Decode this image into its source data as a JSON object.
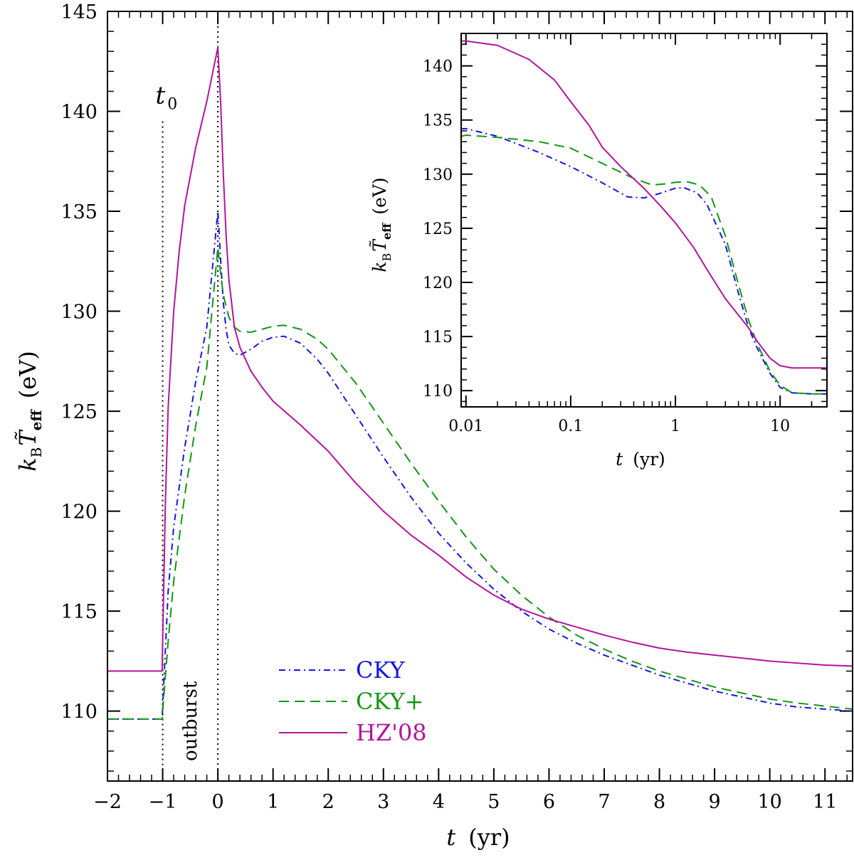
{
  "chart_data": [
    {
      "panel": "main",
      "type": "line",
      "x_unit": "t (yr)",
      "xlabel_var": "t",
      "xlabel_unit": "(yr)",
      "ylabel_k": "k",
      "ylabel_k_sub": "B",
      "ylabel_T": "T̃",
      "ylabel_T_sub": "eff",
      "ylabel_unit": "(eV)",
      "xlim": [
        -2,
        11.5
      ],
      "ylim": [
        106.5,
        145
      ],
      "x_ticks": [
        -2,
        -1,
        0,
        1,
        2,
        3,
        4,
        5,
        6,
        7,
        8,
        9,
        10,
        11
      ],
      "x_tick_labels": [
        "−2",
        "−1",
        "0",
        "1",
        "2",
        "3",
        "4",
        "5",
        "6",
        "7",
        "8",
        "9",
        "10",
        "11"
      ],
      "y_ticks": [
        110,
        115,
        120,
        125,
        130,
        135,
        140,
        145
      ],
      "y_tick_labels": [
        "110",
        "115",
        "120",
        "125",
        "130",
        "135",
        "140",
        "145"
      ],
      "annotations": {
        "t0_label": "t",
        "t0_sub": "0",
        "outburst_label": "outburst",
        "t0_x": -1,
        "outburst_end_x": 0
      },
      "legend": [
        "CKY",
        "CKY+",
        "HZ'08"
      ],
      "series": [
        {
          "name": "CKY",
          "color": "#1414e6",
          "dash": "dashdot",
          "points": [
            [
              -2,
              109.6
            ],
            [
              -1.01,
              109.6
            ],
            [
              -1,
              110.2
            ],
            [
              -0.9,
              116.0
            ],
            [
              -0.8,
              119.2
            ],
            [
              -0.6,
              123.2
            ],
            [
              -0.4,
              126.5
            ],
            [
              -0.2,
              129.2
            ],
            [
              0,
              135.0
            ],
            [
              0.05,
              132.6
            ],
            [
              0.1,
              130.4
            ],
            [
              0.15,
              129.1
            ],
            [
              0.2,
              128.3
            ],
            [
              0.3,
              127.9
            ],
            [
              0.4,
              127.8
            ],
            [
              0.6,
              128.1
            ],
            [
              0.8,
              128.5
            ],
            [
              1.0,
              128.7
            ],
            [
              1.2,
              128.75
            ],
            [
              1.5,
              128.4
            ],
            [
              1.8,
              127.6
            ],
            [
              2.0,
              126.9
            ],
            [
              2.5,
              124.8
            ],
            [
              3.0,
              122.7
            ],
            [
              3.5,
              120.7
            ],
            [
              4.0,
              118.9
            ],
            [
              4.5,
              117.4
            ],
            [
              5.0,
              116.1
            ],
            [
              5.5,
              115.0
            ],
            [
              6.0,
              114.1
            ],
            [
              6.5,
              113.4
            ],
            [
              7.0,
              112.8
            ],
            [
              7.5,
              112.3
            ],
            [
              8.0,
              111.8
            ],
            [
              8.5,
              111.4
            ],
            [
              9.0,
              111.0
            ],
            [
              9.5,
              110.7
            ],
            [
              10.0,
              110.4
            ],
            [
              10.5,
              110.2
            ],
            [
              11.0,
              110.1
            ],
            [
              11.5,
              110.0
            ]
          ]
        },
        {
          "name": "CKY+",
          "color": "#139613",
          "dash": "dashed",
          "points": [
            [
              -2,
              109.6
            ],
            [
              -1.01,
              109.6
            ],
            [
              -1,
              110.0
            ],
            [
              -0.9,
              113.5
            ],
            [
              -0.8,
              116.5
            ],
            [
              -0.6,
              120.8
            ],
            [
              -0.4,
              124.3
            ],
            [
              -0.2,
              127.2
            ],
            [
              0,
              133.2
            ],
            [
              0.05,
              131.9
            ],
            [
              0.1,
              130.8
            ],
            [
              0.2,
              129.7
            ],
            [
              0.3,
              129.2
            ],
            [
              0.4,
              129.0
            ],
            [
              0.6,
              128.95
            ],
            [
              0.8,
              129.1
            ],
            [
              1.0,
              129.25
            ],
            [
              1.2,
              129.3
            ],
            [
              1.5,
              129.1
            ],
            [
              1.8,
              128.6
            ],
            [
              2.0,
              128.1
            ],
            [
              2.5,
              126.4
            ],
            [
              3.0,
              124.4
            ],
            [
              3.5,
              122.4
            ],
            [
              4.0,
              120.5
            ],
            [
              4.5,
              118.7
            ],
            [
              5.0,
              117.1
            ],
            [
              5.5,
              115.8
            ],
            [
              6.0,
              114.7
            ],
            [
              6.5,
              113.8
            ],
            [
              7.0,
              113.1
            ],
            [
              7.5,
              112.5
            ],
            [
              8.0,
              112.0
            ],
            [
              8.5,
              111.6
            ],
            [
              9.0,
              111.2
            ],
            [
              9.5,
              110.9
            ],
            [
              10.0,
              110.6
            ],
            [
              10.5,
              110.4
            ],
            [
              11.0,
              110.25
            ],
            [
              11.5,
              110.1
            ]
          ]
        },
        {
          "name": "HZ'08",
          "color": "#b4149b",
          "dash": "solid",
          "points": [
            [
              -2,
              112.0
            ],
            [
              -1.01,
              112.0
            ],
            [
              -1,
              113.5
            ],
            [
              -0.95,
              120.5
            ],
            [
              -0.9,
              125.2
            ],
            [
              -0.8,
              130.0
            ],
            [
              -0.7,
              133.0
            ],
            [
              -0.6,
              135.3
            ],
            [
              -0.4,
              138.2
            ],
            [
              -0.2,
              140.5
            ],
            [
              0,
              143.2
            ],
            [
              0.05,
              140.5
            ],
            [
              0.1,
              136.8
            ],
            [
              0.15,
              133.8
            ],
            [
              0.2,
              131.6
            ],
            [
              0.3,
              129.2
            ],
            [
              0.4,
              128.2
            ],
            [
              0.6,
              127.0
            ],
            [
              0.8,
              126.2
            ],
            [
              1.0,
              125.5
            ],
            [
              1.5,
              124.3
            ],
            [
              2.0,
              123.0
            ],
            [
              2.5,
              121.4
            ],
            [
              3.0,
              120.0
            ],
            [
              3.5,
              118.8
            ],
            [
              4.0,
              117.8
            ],
            [
              4.5,
              116.7
            ],
            [
              5.0,
              115.8
            ],
            [
              5.5,
              115.1
            ],
            [
              6.0,
              114.6
            ],
            [
              6.5,
              114.2
            ],
            [
              7.0,
              113.8
            ],
            [
              7.5,
              113.45
            ],
            [
              8.0,
              113.15
            ],
            [
              8.5,
              112.95
            ],
            [
              9.0,
              112.8
            ],
            [
              9.5,
              112.65
            ],
            [
              10.0,
              112.5
            ],
            [
              10.5,
              112.4
            ],
            [
              11.0,
              112.3
            ],
            [
              11.5,
              112.25
            ]
          ]
        }
      ]
    },
    {
      "panel": "inset",
      "type": "line",
      "x_scale": "log",
      "xlabel_var": "t",
      "xlabel_unit": "(yr)",
      "ylabel_k": "k",
      "ylabel_k_sub": "B",
      "ylabel_T": "T̃",
      "ylabel_T_sub": "eff",
      "ylabel_unit": "(eV)",
      "xlim": [
        0.009,
        28
      ],
      "ylim": [
        108.5,
        143
      ],
      "x_ticks": [
        0.01,
        0.1,
        1,
        10
      ],
      "x_tick_labels": [
        "0.01",
        "0.1",
        "1",
        "10"
      ],
      "y_ticks": [
        110,
        115,
        120,
        125,
        130,
        135,
        140
      ],
      "y_tick_labels": [
        "110",
        "115",
        "120",
        "125",
        "130",
        "135",
        "140"
      ],
      "series": [
        {
          "name": "CKY",
          "color": "#1414e6",
          "dash": "dashdot",
          "points": [
            [
              0.009,
              134.2
            ],
            [
              0.01,
              134.2
            ],
            [
              0.02,
              133.5
            ],
            [
              0.05,
              132.0
            ],
            [
              0.1,
              130.7
            ],
            [
              0.2,
              129.2
            ],
            [
              0.35,
              127.9
            ],
            [
              0.5,
              127.8
            ],
            [
              0.7,
              128.2
            ],
            [
              1.0,
              128.7
            ],
            [
              1.2,
              128.75
            ],
            [
              1.6,
              128.3
            ],
            [
              2.0,
              127.2
            ],
            [
              3.0,
              123.5
            ],
            [
              4.0,
              119.0
            ],
            [
              5.0,
              115.8
            ],
            [
              6.0,
              114.0
            ],
            [
              8.0,
              111.6
            ],
            [
              10.0,
              110.3
            ],
            [
              13.0,
              109.8
            ],
            [
              20.0,
              109.7
            ],
            [
              28.0,
              109.7
            ]
          ]
        },
        {
          "name": "CKY+",
          "color": "#139613",
          "dash": "dashed",
          "points": [
            [
              0.009,
              133.5
            ],
            [
              0.01,
              133.6
            ],
            [
              0.02,
              133.4
            ],
            [
              0.05,
              133.0
            ],
            [
              0.1,
              132.4
            ],
            [
              0.2,
              131.0
            ],
            [
              0.4,
              129.6
            ],
            [
              0.6,
              129.0
            ],
            [
              0.8,
              129.1
            ],
            [
              1.0,
              129.25
            ],
            [
              1.3,
              129.3
            ],
            [
              1.7,
              129.0
            ],
            [
              2.2,
              127.9
            ],
            [
              3.0,
              124.3
            ],
            [
              4.0,
              119.8
            ],
            [
              5.0,
              116.5
            ],
            [
              6.0,
              114.4
            ],
            [
              8.0,
              111.8
            ],
            [
              10.0,
              110.5
            ],
            [
              13.0,
              109.8
            ],
            [
              20.0,
              109.7
            ],
            [
              28.0,
              109.7
            ]
          ]
        },
        {
          "name": "HZ'08",
          "color": "#b4149b",
          "dash": "solid",
          "points": [
            [
              0.009,
              142.3
            ],
            [
              0.01,
              142.3
            ],
            [
              0.02,
              141.9
            ],
            [
              0.04,
              140.6
            ],
            [
              0.07,
              138.7
            ],
            [
              0.1,
              136.7
            ],
            [
              0.15,
              134.5
            ],
            [
              0.2,
              132.5
            ],
            [
              0.3,
              130.7
            ],
            [
              0.5,
              128.7
            ],
            [
              0.7,
              127.2
            ],
            [
              1.0,
              125.5
            ],
            [
              1.5,
              123.2
            ],
            [
              2.0,
              121.2
            ],
            [
              3.0,
              118.5
            ],
            [
              5.0,
              115.8
            ],
            [
              6.0,
              114.6
            ],
            [
              8.0,
              113.0
            ],
            [
              10.0,
              112.3
            ],
            [
              13.0,
              112.1
            ],
            [
              20.0,
              112.1
            ],
            [
              28.0,
              112.1
            ]
          ]
        }
      ]
    }
  ]
}
